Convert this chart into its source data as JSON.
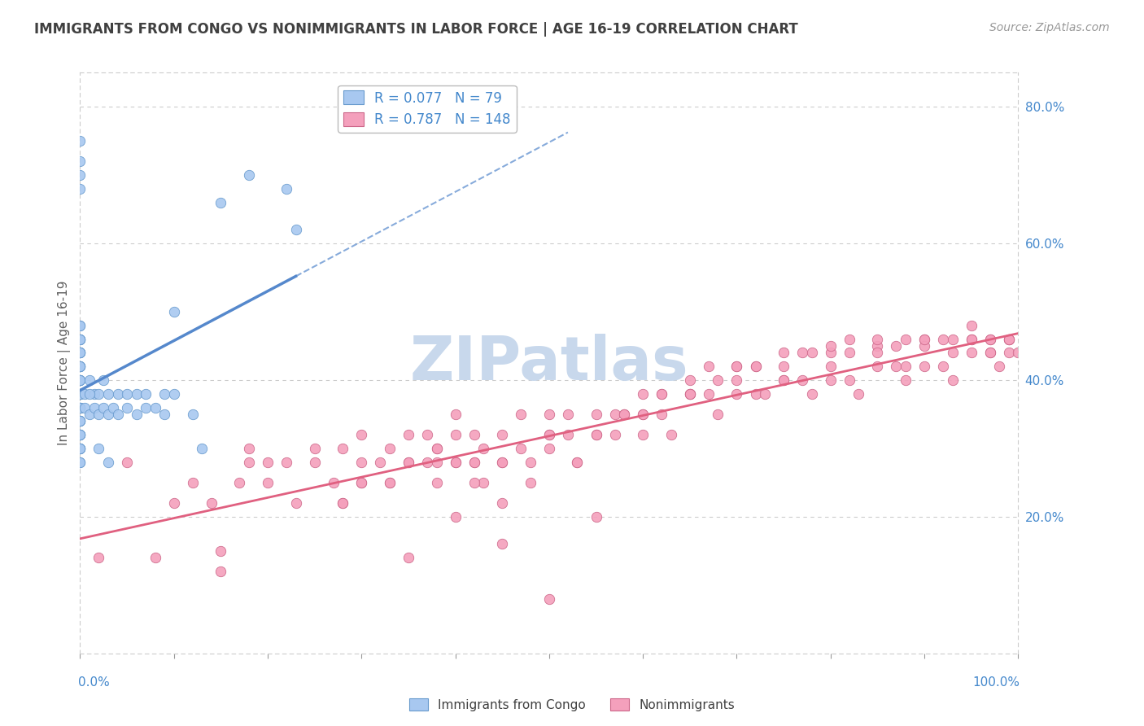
{
  "title": "IMMIGRANTS FROM CONGO VS NONIMMIGRANTS IN LABOR FORCE | AGE 16-19 CORRELATION CHART",
  "source": "Source: ZipAtlas.com",
  "ylabel": "In Labor Force | Age 16-19",
  "xlim": [
    0.0,
    1.0
  ],
  "ylim": [
    0.0,
    0.85
  ],
  "blue_R": 0.077,
  "blue_N": 79,
  "pink_R": 0.787,
  "pink_N": 148,
  "blue_color": "#a8c8f0",
  "blue_edge_color": "#6699cc",
  "blue_line_color": "#5588cc",
  "pink_color": "#f4a0bc",
  "pink_edge_color": "#cc6688",
  "pink_line_color": "#e06080",
  "background_color": "#ffffff",
  "grid_color": "#cccccc",
  "title_color": "#404040",
  "source_color": "#999999",
  "axis_label_color": "#4488cc",
  "watermark_color": "#c8d8ec",
  "blue_scatter_x": [
    0.0,
    0.0,
    0.0,
    0.0,
    0.0,
    0.0,
    0.0,
    0.0,
    0.0,
    0.0,
    0.0,
    0.0,
    0.0,
    0.0,
    0.0,
    0.0,
    0.0,
    0.0,
    0.0,
    0.0,
    0.0,
    0.0,
    0.0,
    0.0,
    0.0,
    0.0,
    0.0,
    0.0,
    0.0,
    0.0,
    0.0,
    0.0,
    0.0,
    0.0,
    0.0,
    0.0,
    0.0,
    0.0,
    0.0,
    0.0,
    0.005,
    0.005,
    0.01,
    0.01,
    0.015,
    0.015,
    0.02,
    0.02,
    0.025,
    0.025,
    0.03,
    0.03,
    0.035,
    0.04,
    0.04,
    0.05,
    0.05,
    0.06,
    0.06,
    0.07,
    0.07,
    0.08,
    0.09,
    0.09,
    0.1,
    0.1,
    0.12,
    0.13,
    0.15,
    0.18,
    0.22,
    0.23,
    0.0,
    0.0,
    0.0,
    0.0,
    0.01,
    0.02,
    0.03
  ],
  "blue_scatter_y": [
    0.3,
    0.32,
    0.34,
    0.36,
    0.38,
    0.4,
    0.42,
    0.44,
    0.46,
    0.48,
    0.3,
    0.32,
    0.34,
    0.36,
    0.38,
    0.4,
    0.42,
    0.44,
    0.46,
    0.48,
    0.28,
    0.3,
    0.32,
    0.34,
    0.36,
    0.38,
    0.4,
    0.42,
    0.44,
    0.46,
    0.28,
    0.3,
    0.32,
    0.34,
    0.36,
    0.38,
    0.4,
    0.42,
    0.44,
    0.46,
    0.36,
    0.38,
    0.35,
    0.4,
    0.36,
    0.38,
    0.35,
    0.38,
    0.36,
    0.4,
    0.35,
    0.38,
    0.36,
    0.35,
    0.38,
    0.36,
    0.38,
    0.35,
    0.38,
    0.36,
    0.38,
    0.36,
    0.35,
    0.38,
    0.38,
    0.5,
    0.35,
    0.3,
    0.66,
    0.7,
    0.68,
    0.62,
    0.68,
    0.7,
    0.72,
    0.75,
    0.38,
    0.3,
    0.28
  ],
  "pink_scatter_x": [
    0.02,
    0.05,
    0.08,
    0.1,
    0.12,
    0.14,
    0.15,
    0.17,
    0.18,
    0.2,
    0.2,
    0.22,
    0.23,
    0.25,
    0.25,
    0.27,
    0.28,
    0.28,
    0.3,
    0.3,
    0.3,
    0.32,
    0.33,
    0.33,
    0.35,
    0.35,
    0.37,
    0.37,
    0.38,
    0.38,
    0.38,
    0.4,
    0.4,
    0.4,
    0.42,
    0.42,
    0.43,
    0.43,
    0.45,
    0.45,
    0.47,
    0.47,
    0.48,
    0.5,
    0.5,
    0.52,
    0.52,
    0.53,
    0.55,
    0.55,
    0.57,
    0.57,
    0.58,
    0.6,
    0.6,
    0.62,
    0.62,
    0.63,
    0.65,
    0.65,
    0.67,
    0.67,
    0.68,
    0.7,
    0.7,
    0.72,
    0.72,
    0.73,
    0.75,
    0.75,
    0.77,
    0.77,
    0.78,
    0.8,
    0.8,
    0.82,
    0.82,
    0.83,
    0.85,
    0.85,
    0.87,
    0.87,
    0.88,
    0.9,
    0.9,
    0.92,
    0.92,
    0.93,
    0.95,
    0.95,
    0.97,
    0.97,
    0.98,
    0.99,
    0.99,
    1.0,
    0.15,
    0.18,
    0.5,
    0.53,
    0.6,
    0.65,
    0.7,
    0.75,
    0.8,
    0.85,
    0.88,
    0.9,
    0.93,
    0.95,
    0.97,
    0.99,
    0.4,
    0.42,
    0.45,
    0.28,
    0.3,
    0.33,
    0.35,
    0.38,
    0.42,
    0.45,
    0.48,
    0.5,
    0.55,
    0.58,
    0.6,
    0.62,
    0.65,
    0.68,
    0.7,
    0.72,
    0.75,
    0.78,
    0.8,
    0.82,
    0.85,
    0.88,
    0.9,
    0.93,
    0.95,
    0.97,
    0.99,
    0.55,
    0.5,
    0.45,
    0.4,
    0.35
  ],
  "pink_scatter_y": [
    0.14,
    0.28,
    0.14,
    0.22,
    0.25,
    0.22,
    0.15,
    0.25,
    0.3,
    0.25,
    0.28,
    0.28,
    0.22,
    0.28,
    0.3,
    0.25,
    0.22,
    0.3,
    0.25,
    0.28,
    0.32,
    0.28,
    0.25,
    0.3,
    0.28,
    0.32,
    0.28,
    0.32,
    0.25,
    0.28,
    0.3,
    0.28,
    0.32,
    0.35,
    0.28,
    0.32,
    0.25,
    0.3,
    0.28,
    0.32,
    0.3,
    0.35,
    0.25,
    0.32,
    0.35,
    0.32,
    0.35,
    0.28,
    0.32,
    0.35,
    0.32,
    0.35,
    0.35,
    0.32,
    0.38,
    0.35,
    0.38,
    0.32,
    0.38,
    0.4,
    0.38,
    0.42,
    0.35,
    0.38,
    0.42,
    0.38,
    0.42,
    0.38,
    0.4,
    0.42,
    0.4,
    0.44,
    0.38,
    0.4,
    0.44,
    0.4,
    0.44,
    0.38,
    0.42,
    0.45,
    0.42,
    0.45,
    0.4,
    0.42,
    0.46,
    0.42,
    0.46,
    0.4,
    0.44,
    0.46,
    0.44,
    0.46,
    0.42,
    0.44,
    0.46,
    0.44,
    0.12,
    0.28,
    0.32,
    0.28,
    0.35,
    0.38,
    0.4,
    0.4,
    0.42,
    0.44,
    0.42,
    0.45,
    0.44,
    0.46,
    0.44,
    0.46,
    0.28,
    0.25,
    0.22,
    0.22,
    0.25,
    0.25,
    0.28,
    0.3,
    0.28,
    0.28,
    0.28,
    0.3,
    0.32,
    0.35,
    0.35,
    0.38,
    0.38,
    0.4,
    0.42,
    0.42,
    0.44,
    0.44,
    0.45,
    0.46,
    0.46,
    0.46,
    0.46,
    0.46,
    0.48,
    0.46,
    0.46,
    0.2,
    0.08,
    0.16,
    0.2,
    0.14
  ]
}
